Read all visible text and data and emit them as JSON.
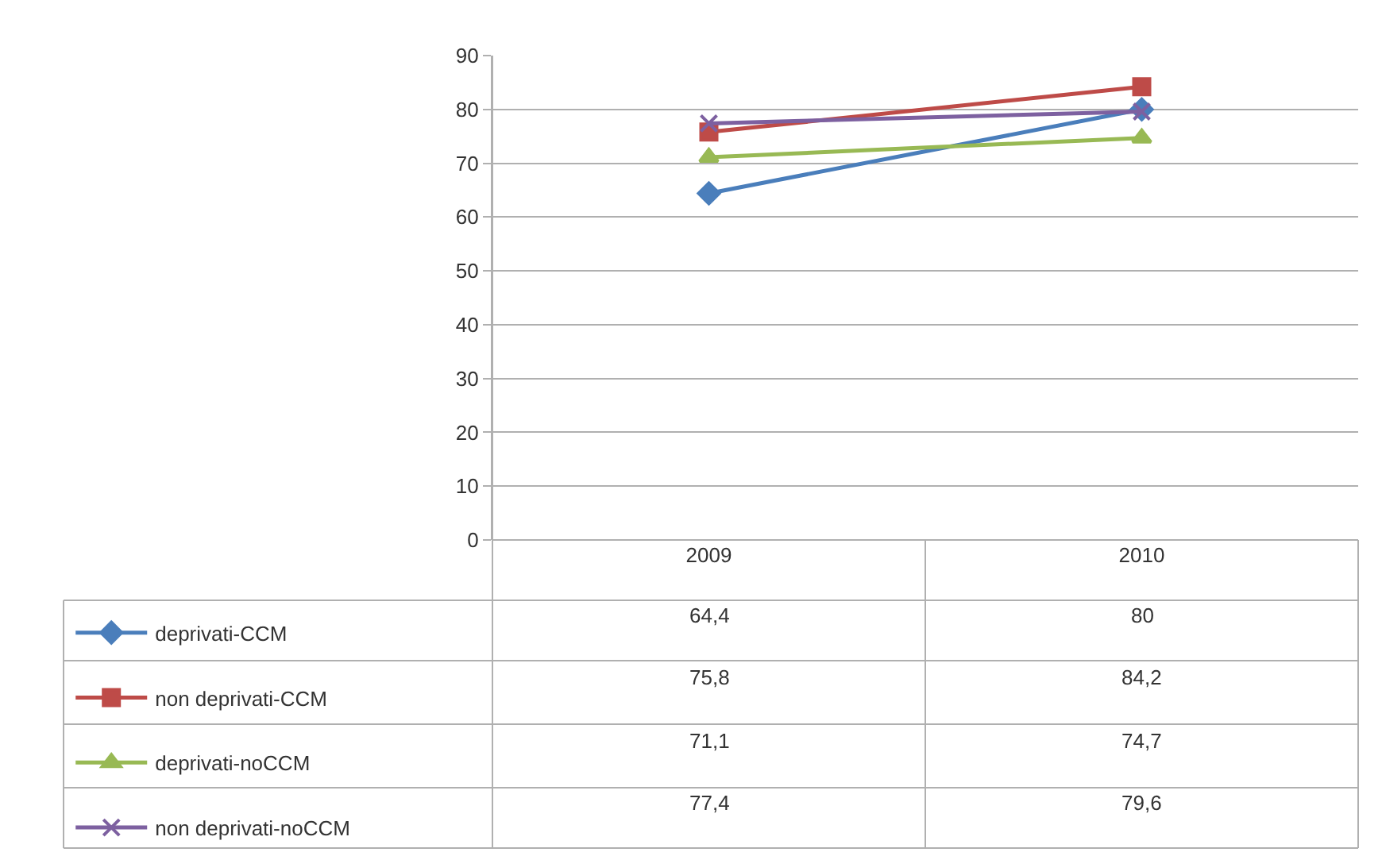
{
  "chart_data": {
    "type": "line",
    "categories": [
      "2009",
      "2010"
    ],
    "series": [
      {
        "name": "deprivati-CCM",
        "color": "#4a7ebb",
        "marker": "diamond",
        "values": [
          64.4,
          80
        ],
        "value_labels": [
          "64,4",
          "80"
        ]
      },
      {
        "name": "non deprivati-CCM",
        "color": "#be4b48",
        "marker": "square",
        "values": [
          75.8,
          84.2
        ],
        "value_labels": [
          "75,8",
          "84,2"
        ]
      },
      {
        "name": "deprivati-noCCM",
        "color": "#98b954",
        "marker": "triangle",
        "values": [
          71.1,
          74.7
        ],
        "value_labels": [
          "71,1",
          "74,7"
        ]
      },
      {
        "name": "non deprivati-noCCM",
        "color": "#7d60a0",
        "marker": "cross",
        "values": [
          77.4,
          79.6
        ],
        "value_labels": [
          "77,4",
          "79,6"
        ]
      }
    ],
    "ylim": [
      0,
      90
    ],
    "yticks": [
      0,
      10,
      20,
      30,
      40,
      50,
      60,
      70,
      80,
      90
    ],
    "grid": "y",
    "legend": "bottom left"
  }
}
